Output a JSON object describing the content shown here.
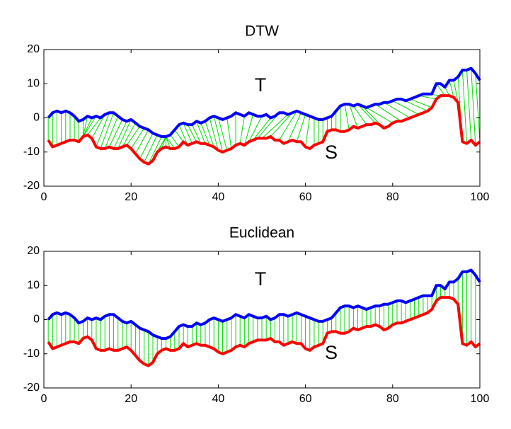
{
  "chart_data": [
    {
      "type": "line",
      "title": "DTW",
      "annotations": [
        "T",
        "S"
      ],
      "x": [
        1,
        2,
        3,
        4,
        5,
        6,
        7,
        8,
        9,
        10,
        11,
        12,
        13,
        14,
        15,
        16,
        17,
        18,
        19,
        20,
        21,
        22,
        23,
        24,
        25,
        26,
        27,
        28,
        29,
        30,
        31,
        32,
        33,
        34,
        35,
        36,
        37,
        38,
        39,
        40,
        41,
        42,
        43,
        44,
        45,
        46,
        47,
        48,
        49,
        50,
        51,
        52,
        53,
        54,
        55,
        56,
        57,
        58,
        59,
        60,
        61,
        62,
        63,
        64,
        65,
        66,
        67,
        68,
        69,
        70,
        71,
        72,
        73,
        74,
        75,
        76,
        77,
        78,
        79,
        80,
        81,
        82,
        83,
        84,
        85,
        86,
        87,
        88,
        89,
        90,
        91,
        92,
        93,
        94,
        95,
        96,
        97,
        98,
        99,
        100
      ],
      "series": [
        {
          "name": "T",
          "color": "#0000ff",
          "values": [
            0,
            1.5,
            2,
            1.5,
            2,
            1.5,
            0.5,
            -1,
            -0.5,
            0.5,
            0,
            0.5,
            0,
            1,
            1.5,
            1.5,
            0.5,
            -0.5,
            -1,
            -0.5,
            -1.5,
            -2.5,
            -3,
            -3.5,
            -4.5,
            -5,
            -5.5,
            -5.5,
            -5,
            -3.5,
            -2,
            -1.5,
            -2,
            -2,
            -1,
            -1.5,
            -1,
            0,
            0.5,
            0,
            -0.5,
            0,
            0.5,
            1.5,
            1,
            0.5,
            1.5,
            1,
            0.5,
            0.5,
            1,
            0,
            0.5,
            1.5,
            1.5,
            1,
            1.5,
            2,
            1.5,
            1,
            0.5,
            0,
            -0.5,
            -0.5,
            0,
            0.5,
            2,
            3.5,
            4,
            4,
            3.5,
            4,
            3.5,
            3,
            3.5,
            4,
            4,
            4.5,
            4.5,
            5,
            5.5,
            5.5,
            5,
            5.5,
            6,
            6.5,
            7,
            7,
            7,
            10,
            10,
            9,
            11,
            11,
            12,
            14,
            14,
            14.5,
            13,
            11
          ]
        },
        {
          "name": "S",
          "color": "#ff0000",
          "values": [
            -6.5,
            -8.5,
            -8,
            -7.5,
            -7,
            -6.5,
            -6.5,
            -7,
            -5.5,
            -5,
            -6,
            -8.5,
            -9,
            -9,
            -8.5,
            -9,
            -9,
            -8.5,
            -8,
            -9,
            -10.5,
            -12,
            -13,
            -13.5,
            -12.5,
            -10,
            -9,
            -8.5,
            -9,
            -9,
            -8.5,
            -7,
            -8,
            -7.5,
            -7,
            -7.5,
            -7.5,
            -8,
            -8.5,
            -9.5,
            -10,
            -9.5,
            -9,
            -8,
            -7.5,
            -8,
            -7,
            -6.5,
            -6,
            -6,
            -6,
            -5.5,
            -6.5,
            -6.5,
            -7.5,
            -7,
            -6.5,
            -7,
            -7,
            -8.5,
            -9,
            -8,
            -7.5,
            -7,
            -4,
            -3.5,
            -3.5,
            -4,
            -4,
            -3.5,
            -2.5,
            -3,
            -2.5,
            -2,
            -2,
            -1.5,
            -2,
            -3,
            -2.5,
            -1.5,
            -1,
            -1,
            -0.5,
            0,
            0.5,
            1,
            1.5,
            2,
            3,
            5.5,
            6.5,
            6.5,
            6.5,
            6,
            4.5,
            -7,
            -7.5,
            -6.5,
            -8,
            -7
          ]
        }
      ],
      "connector_color": "#00dd00",
      "matches": [
        [
          1,
          1
        ],
        [
          2,
          2
        ],
        [
          3,
          3
        ],
        [
          4,
          4
        ],
        [
          5,
          5
        ],
        [
          6,
          6
        ],
        [
          7,
          7
        ],
        [
          8,
          8
        ],
        [
          9,
          9
        ],
        [
          10,
          9
        ],
        [
          11,
          9
        ],
        [
          12,
          9
        ],
        [
          13,
          10
        ],
        [
          14,
          11
        ],
        [
          15,
          12
        ],
        [
          16,
          13
        ],
        [
          17,
          14
        ],
        [
          18,
          15
        ],
        [
          19,
          16
        ],
        [
          20,
          17
        ],
        [
          21,
          18
        ],
        [
          22,
          19
        ],
        [
          23,
          20
        ],
        [
          24,
          21
        ],
        [
          25,
          22
        ],
        [
          26,
          23
        ],
        [
          27,
          24
        ],
        [
          28,
          25
        ],
        [
          28,
          26
        ],
        [
          28,
          27
        ],
        [
          28,
          28
        ],
        [
          28,
          29
        ],
        [
          28,
          30
        ],
        [
          29,
          31
        ],
        [
          30,
          32
        ],
        [
          31,
          33
        ],
        [
          32,
          34
        ],
        [
          33,
          35
        ],
        [
          34,
          36
        ],
        [
          35,
          37
        ],
        [
          36,
          38
        ],
        [
          37,
          39
        ],
        [
          38,
          40
        ],
        [
          39,
          41
        ],
        [
          40,
          42
        ],
        [
          42,
          43
        ],
        [
          44,
          44
        ],
        [
          46,
          45
        ],
        [
          48,
          46
        ],
        [
          50,
          47
        ],
        [
          52,
          48
        ],
        [
          54,
          49
        ],
        [
          56,
          50
        ],
        [
          57,
          52
        ],
        [
          58,
          54
        ],
        [
          59,
          56
        ],
        [
          60,
          58
        ],
        [
          61,
          60
        ],
        [
          62,
          62
        ],
        [
          63,
          63
        ],
        [
          64,
          64
        ],
        [
          65,
          65
        ],
        [
          66,
          66
        ],
        [
          67,
          67
        ],
        [
          68,
          68
        ],
        [
          69,
          70
        ],
        [
          70,
          72
        ],
        [
          71,
          74
        ],
        [
          72,
          76
        ],
        [
          73,
          78
        ],
        [
          74,
          80
        ],
        [
          76,
          82
        ],
        [
          78,
          84
        ],
        [
          80,
          86
        ],
        [
          82,
          88
        ],
        [
          84,
          89
        ],
        [
          86,
          90
        ],
        [
          88,
          91
        ],
        [
          90,
          92
        ],
        [
          92,
          93
        ],
        [
          93,
          94
        ],
        [
          94,
          95
        ],
        [
          95,
          96
        ],
        [
          96,
          97
        ],
        [
          97,
          98
        ],
        [
          98,
          99
        ],
        [
          99,
          100
        ],
        [
          100,
          100
        ]
      ],
      "xlim": [
        0,
        100
      ],
      "xticks": [
        0,
        20,
        40,
        60,
        80,
        100
      ],
      "ylim": [
        -20,
        20
      ],
      "yticks": [
        -20,
        -10,
        0,
        10,
        20
      ]
    },
    {
      "type": "line",
      "title": "Euclidean",
      "annotations": [
        "T",
        "S"
      ],
      "x": [
        1,
        2,
        3,
        4,
        5,
        6,
        7,
        8,
        9,
        10,
        11,
        12,
        13,
        14,
        15,
        16,
        17,
        18,
        19,
        20,
        21,
        22,
        23,
        24,
        25,
        26,
        27,
        28,
        29,
        30,
        31,
        32,
        33,
        34,
        35,
        36,
        37,
        38,
        39,
        40,
        41,
        42,
        43,
        44,
        45,
        46,
        47,
        48,
        49,
        50,
        51,
        52,
        53,
        54,
        55,
        56,
        57,
        58,
        59,
        60,
        61,
        62,
        63,
        64,
        65,
        66,
        67,
        68,
        69,
        70,
        71,
        72,
        73,
        74,
        75,
        76,
        77,
        78,
        79,
        80,
        81,
        82,
        83,
        84,
        85,
        86,
        87,
        88,
        89,
        90,
        91,
        92,
        93,
        94,
        95,
        96,
        97,
        98,
        99,
        100
      ],
      "series": [
        {
          "name": "T",
          "color": "#0000ff",
          "values": [
            0,
            1.5,
            2,
            1.5,
            2,
            1.5,
            0.5,
            -1,
            -0.5,
            0.5,
            0,
            0.5,
            0,
            1,
            1.5,
            1.5,
            0.5,
            -0.5,
            -1,
            -0.5,
            -1.5,
            -2.5,
            -3,
            -3.5,
            -4.5,
            -5,
            -5.5,
            -5.5,
            -5,
            -3.5,
            -2,
            -1.5,
            -2,
            -2,
            -1,
            -1.5,
            -1,
            0,
            0.5,
            0,
            -0.5,
            0,
            0.5,
            1.5,
            1,
            0.5,
            1.5,
            1,
            0.5,
            0.5,
            1,
            0,
            0.5,
            1.5,
            1.5,
            1,
            1.5,
            2,
            1.5,
            1,
            0.5,
            0,
            -0.5,
            -0.5,
            0,
            0.5,
            2,
            3.5,
            4,
            4,
            3.5,
            4,
            3.5,
            3,
            3.5,
            4,
            4,
            4.5,
            4.5,
            5,
            5.5,
            5.5,
            5,
            5.5,
            6,
            6.5,
            7,
            7,
            7,
            10,
            10,
            9,
            11,
            11,
            12,
            14,
            14,
            14.5,
            13,
            11
          ]
        },
        {
          "name": "S",
          "color": "#ff0000",
          "values": [
            -6.5,
            -8.5,
            -8,
            -7.5,
            -7,
            -6.5,
            -6.5,
            -7,
            -5.5,
            -5,
            -6,
            -8.5,
            -9,
            -9,
            -8.5,
            -9,
            -9,
            -8.5,
            -8,
            -9,
            -10.5,
            -12,
            -13,
            -13.5,
            -12.5,
            -10,
            -9,
            -8.5,
            -9,
            -9,
            -8.5,
            -7,
            -8,
            -7.5,
            -7,
            -7.5,
            -7.5,
            -8,
            -8.5,
            -9.5,
            -10,
            -9.5,
            -9,
            -8,
            -7.5,
            -8,
            -7,
            -6.5,
            -6,
            -6,
            -6,
            -5.5,
            -6.5,
            -6.5,
            -7.5,
            -7,
            -6.5,
            -7,
            -7,
            -8.5,
            -9,
            -8,
            -7.5,
            -7,
            -4,
            -3.5,
            -3.5,
            -4,
            -4,
            -3.5,
            -2.5,
            -3,
            -2.5,
            -2,
            -2,
            -1.5,
            -2,
            -3,
            -2.5,
            -1.5,
            -1,
            -1,
            -0.5,
            0,
            0.5,
            1,
            1.5,
            2,
            3,
            5.5,
            6.5,
            6.5,
            6.5,
            6,
            4.5,
            -7,
            -7.5,
            -6.5,
            -8,
            -7
          ]
        }
      ],
      "connector_color": "#00dd00",
      "xlim": [
        0,
        100
      ],
      "xticks": [
        0,
        20,
        40,
        60,
        80,
        100
      ],
      "ylim": [
        -20,
        20
      ],
      "yticks": [
        -20,
        -10,
        0,
        10,
        20
      ]
    }
  ]
}
